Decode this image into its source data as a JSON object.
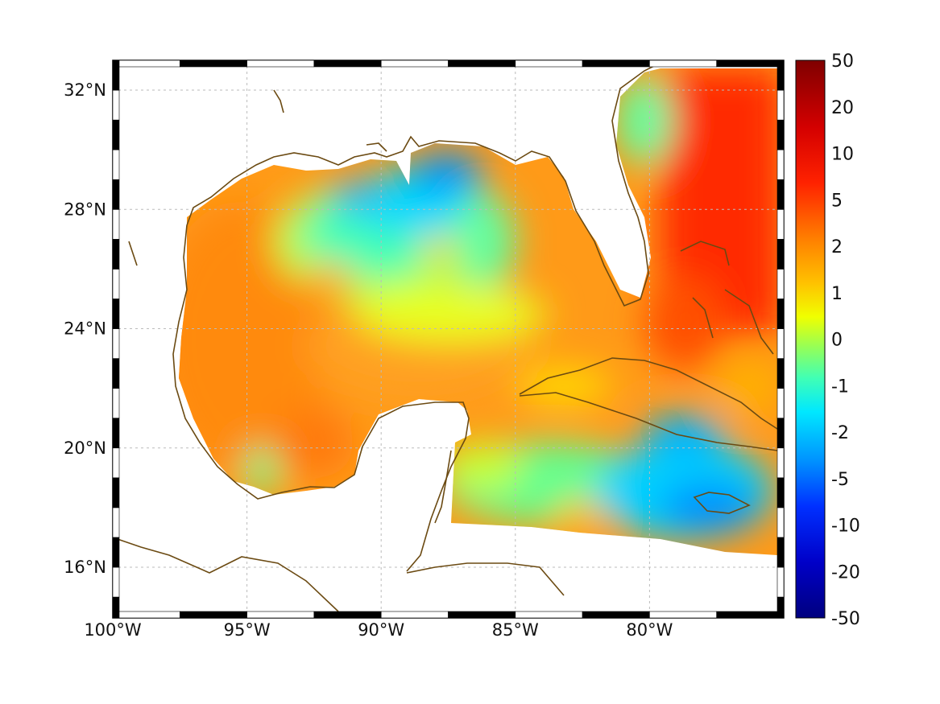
{
  "map": {
    "lon_range": [
      -100,
      -75
    ],
    "lat_range": [
      14.3,
      33
    ],
    "lon_ticks": [
      {
        "value": -100,
        "label": "100°W"
      },
      {
        "value": -95,
        "label": "95°W"
      },
      {
        "value": -90,
        "label": "90°W"
      },
      {
        "value": -85,
        "label": "85°W"
      },
      {
        "value": -80,
        "label": "80°W"
      }
    ],
    "lat_ticks": [
      {
        "value": 16,
        "label": "16°N"
      },
      {
        "value": 20,
        "label": "20°N"
      },
      {
        "value": 24,
        "label": "24°N"
      },
      {
        "value": 28,
        "label": "28°N"
      },
      {
        "value": 32,
        "label": "32°N"
      }
    ],
    "grid": true,
    "coast_color": "#6b4a12",
    "land_color": "#ffffff"
  },
  "colorbar": {
    "colormap": "jet",
    "ticks": [
      "50",
      "20",
      "10",
      "5",
      "2",
      "1",
      "0",
      "-1",
      "-2",
      "-5",
      "-10",
      "-20",
      "-50"
    ],
    "placement": "right"
  }
}
